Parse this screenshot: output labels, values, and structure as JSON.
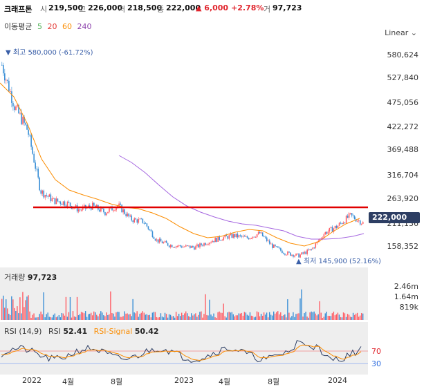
{
  "header": {
    "name": "크래프톤",
    "open_label": "시",
    "open": "219,500",
    "high_label": "고",
    "high": "226,000",
    "low_label": "저",
    "low": "218,500",
    "close_label": "종",
    "close": "222,000",
    "change": "▲ 6,000",
    "change_pct": "+2.78%",
    "volume_label": "거",
    "volume": "97,723"
  },
  "ma_legend": {
    "label": "이동평균",
    "periods": [
      {
        "text": "5",
        "color": "#4caf50"
      },
      {
        "text": "20",
        "color": "#e53935"
      },
      {
        "text": "60",
        "color": "#fb8c00"
      },
      {
        "text": "240",
        "color": "#8e44ad"
      }
    ]
  },
  "scale_button": "Linear ⌄",
  "price_axis": [
    "580,624",
    "527,840",
    "475,056",
    "422,272",
    "369,488",
    "316,704",
    "263,920",
    "211,136",
    "158,352"
  ],
  "current_price_badge": "222,000",
  "annotations": {
    "high": "▼ 최고 580,000 (-61.72%)",
    "low": "▲ 최저 145,900 (52.16%)"
  },
  "volume_panel": {
    "label": "거래량",
    "value": "97,723",
    "axis": [
      "2.46m",
      "1.64m",
      "819k"
    ]
  },
  "rsi_panel": {
    "label": "RSI (14,9)",
    "rsi_label": "RSI",
    "rsi_value": "52.41",
    "signal_label": "RSI-Signal",
    "signal_value": "50.42",
    "levels": [
      "70",
      "30"
    ]
  },
  "x_axis": [
    "2022",
    "4월",
    "8월",
    "2023",
    "4월",
    "8월",
    "2024"
  ],
  "colors": {
    "candle_up": "#ff5c64",
    "candle_down": "#3a8fd6",
    "support_line": "#e00000",
    "badge_bg": "#2d3e63"
  },
  "chart_data": {
    "type": "line",
    "title": "크래프톤",
    "series": [
      {
        "name": "종",
        "x": [
          "2021-11",
          "2021-12",
          "2022-01",
          "2022-02",
          "2022-03",
          "2022-04",
          "2022-05",
          "2022-06",
          "2022-07",
          "2022-08",
          "2022-09",
          "2022-10",
          "2022-11",
          "2022-12",
          "2023-01",
          "2023-02",
          "2023-03",
          "2023-04",
          "2023-05",
          "2023-06",
          "2023-07",
          "2023-08",
          "2023-09",
          "2023-10",
          "2023-11",
          "2023-12",
          "2024-01",
          "2024-02",
          "2024-03"
        ],
        "values": [
          560000,
          470000,
          420000,
          290000,
          270000,
          265000,
          250000,
          258000,
          245000,
          260000,
          230000,
          225000,
          185000,
          175000,
          172000,
          170000,
          182000,
          190000,
          195000,
          190000,
          200000,
          172000,
          158000,
          152000,
          165000,
          200000,
          215000,
          238000,
          222000
        ]
      }
    ],
    "support_level": 245000,
    "ylim": [
      130000,
      610000
    ],
    "volume_axis": [
      "819k",
      "1.64m",
      "2.46m"
    ],
    "rsi_levels": [
      30,
      70
    ]
  }
}
